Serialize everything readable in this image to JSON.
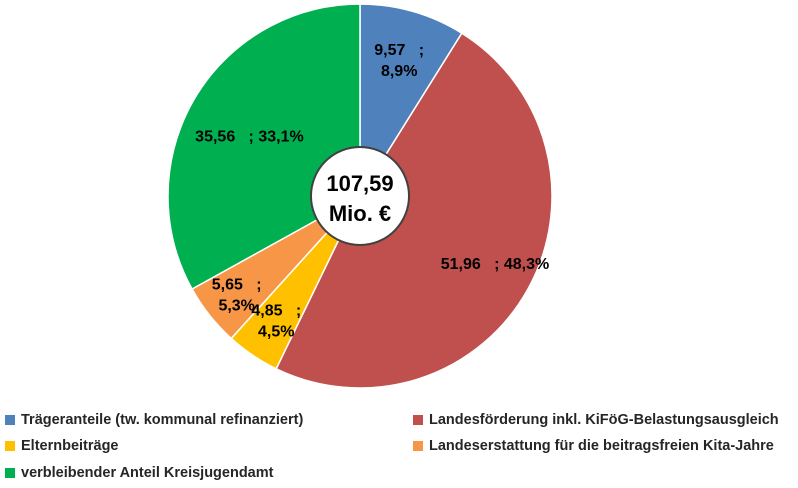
{
  "chart_data": {
    "type": "pie",
    "title": "",
    "center_label": [
      "107,59",
      "Mio. €"
    ],
    "unit": "Mio. €",
    "start_angle_deg": 0,
    "direction": "clockwise",
    "legend_placement": "bottom",
    "slices": [
      {
        "name": "Trägeranteile (tw. kommunal refinanziert)",
        "value": 9.57,
        "percent": 8.9,
        "color": "#4F81BD",
        "label_lines": [
          "9,57   ;",
          "8,9%"
        ]
      },
      {
        "name": "Landesförderung inkl. KiFöG-Belastungsausgleich",
        "value": 51.96,
        "percent": 48.3,
        "color": "#C0504D",
        "label_lines": [
          "51,96   ; 48,3%"
        ]
      },
      {
        "name": "Elternbeiträge",
        "value": 4.85,
        "percent": 4.5,
        "color": "#FFC000",
        "label_lines": [
          "4,85   ;",
          "4,5%"
        ]
      },
      {
        "name": "Landeserstattung für die beitragsfreien Kita-Jahre",
        "value": 5.65,
        "percent": 5.3,
        "color": "#F79646",
        "label_lines": [
          "5,65   ;",
          "5,3%"
        ]
      },
      {
        "name": "verbleibender Anteil  Kreisjugendamt",
        "value": 35.56,
        "percent": 33.1,
        "color": "#00B050",
        "label_lines": [
          "35,56   ; 33,1%"
        ]
      }
    ]
  }
}
